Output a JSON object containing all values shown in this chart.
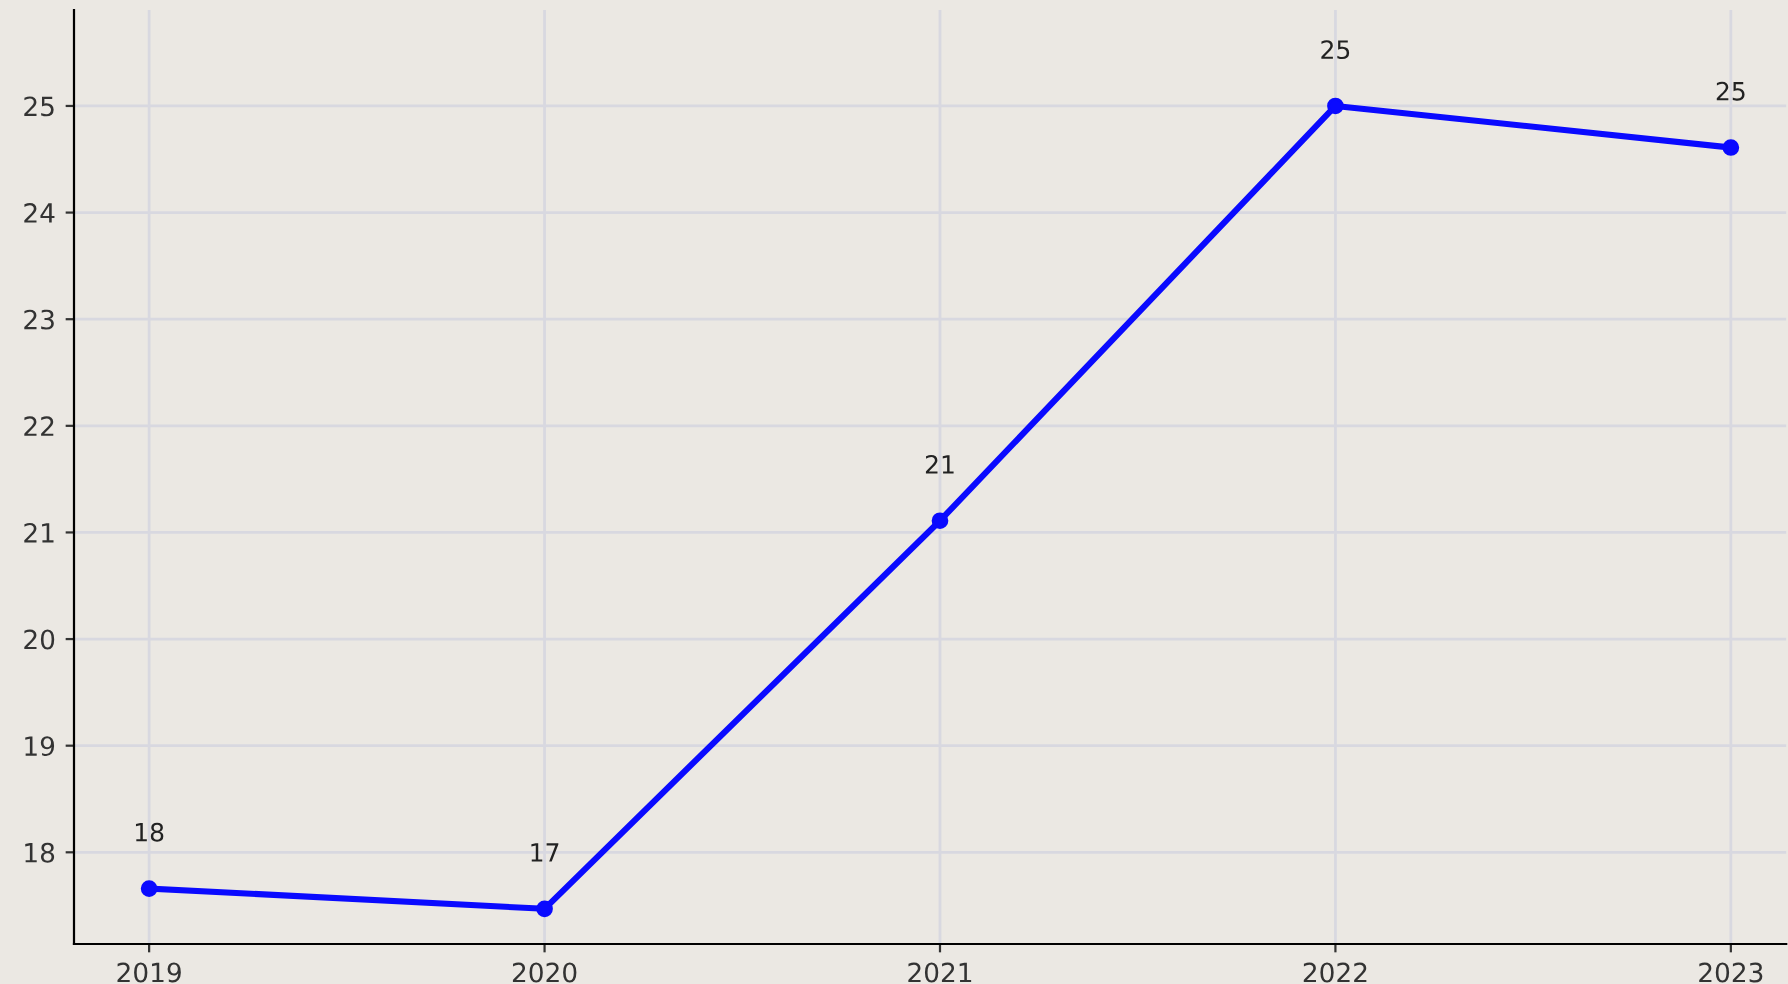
{
  "chart_data": {
    "type": "line",
    "x": [
      2019,
      2020,
      2021,
      2022,
      2023
    ],
    "series": [
      {
        "color": "#0a0aff",
        "values": [
          17.66,
          17.47,
          21.11,
          25.0,
          24.61
        ],
        "value_labels": [
          "18",
          "17",
          "21",
          "25",
          "25"
        ]
      }
    ],
    "xlim": [
      2018.81,
      2023.14
    ],
    "ylim": [
      17.14,
      25.9
    ],
    "xticks": [
      2019,
      2020,
      2021,
      2022,
      2023
    ],
    "yticks": [
      18,
      19,
      20,
      21,
      22,
      23,
      24,
      25
    ],
    "grid": true,
    "marker": "circle",
    "line_style": "solid",
    "legend": false
  }
}
